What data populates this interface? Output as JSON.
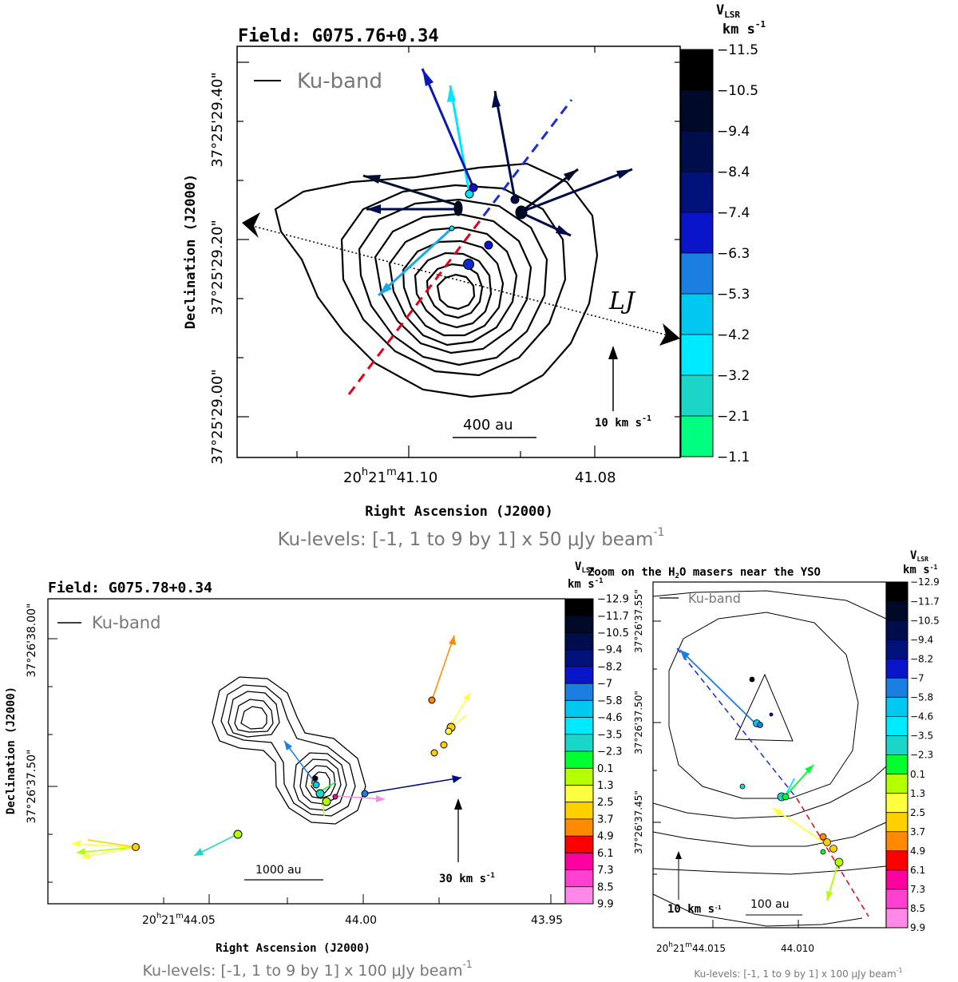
{
  "chart_data": [
    {
      "type": "scatter",
      "title": "Field: G075.76+0.34",
      "xlabel": "Right Ascension (J2000)",
      "ylabel": "Declination (J2000)",
      "x_ticks": [
        "20h21m41.10s",
        "41.08s"
      ],
      "x_tick_parts": {
        "h": "20",
        "m": "21",
        "s1": "41.10",
        "s2": "41.08"
      },
      "y_ticks": [
        "37°25'29.40\"",
        "37°25'29.20\"",
        "37°25'29.00\""
      ],
      "legend": "Ku-band",
      "scale_bar": "400  au",
      "velocity_ref": "10 km s-1",
      "velocity_ref_label": "10 km s",
      "lj_label": "LJ",
      "ku_levels_text": "Ku-levels: [-1, 1 to 9 by 1]  x 50 μJy beam",
      "ku_levels_exp": "-1",
      "colorbar_title": "V_LSR km s-1",
      "colorbar_title_main": "V",
      "colorbar_title_sub": "LSR",
      "colorbar_unit": "km s",
      "colorbar_exp": "-1",
      "colorbar_ticks": [
        "-11.5",
        "-10.5",
        "-9.4",
        "-8.4",
        "-7.4",
        "-6.3",
        "-5.3",
        "-4.2",
        "-3.2",
        "-2.1",
        "-1.1"
      ],
      "colorbar_colors": [
        "#000000",
        "#000a28",
        "#000d4d",
        "#00127a",
        "#0a14c8",
        "#1a7fe0",
        "#00c8f0",
        "#00eaff",
        "#1ad6c8",
        "#00ff80"
      ],
      "masers_vlsr_km_s": [
        -4.5,
        -9.0,
        -9.4,
        -9.8,
        -10.2,
        -4.0,
        -8.0,
        -6.5
      ]
    },
    {
      "type": "scatter",
      "title": "Field: G075.78+0.34",
      "xlabel": "Right Ascension (J2000)",
      "ylabel": "Declination (J2000)",
      "x_ticks": [
        "20h21m44.05s",
        "44.00s",
        "43.95s"
      ],
      "x_tick_parts": {
        "h": "20",
        "m": "21",
        "s1": "44.05",
        "s2": "44.00",
        "s3": "43.95"
      },
      "y_ticks": [
        "37°26'38.00\"",
        "37°26'37.50\""
      ],
      "legend": "Ku-band",
      "scale_bar": "1000  au",
      "velocity_ref": "30 km s-1",
      "velocity_ref_label": "30  km s",
      "ku_levels_text": "Ku-levels: [-1, 1 to 9 by 1]  x 100 μJy beam",
      "ku_levels_exp": "-1",
      "colorbar_title_main": "V",
      "colorbar_title_sub": "LSR",
      "colorbar_unit": "km s",
      "colorbar_exp": "-1",
      "colorbar_ticks": [
        "-12.9",
        "-11.7",
        "-10.5",
        "-9.4",
        "-8.2",
        "-7",
        "-5.8",
        "-4.6",
        "-3.5",
        "-2.3",
        "0.1",
        "1.3",
        "2.5",
        "3.7",
        "4.9",
        "6.1",
        "7.3",
        "8.5",
        "9.9"
      ],
      "colorbar_colors": [
        "#000000",
        "#000a28",
        "#000d4d",
        "#00127a",
        "#0a14c8",
        "#1a7fe0",
        "#00c8f0",
        "#00eaff",
        "#1ad6c8",
        "#00ff30",
        "#b4ff00",
        "#ffff40",
        "#ffd000",
        "#ff8a00",
        "#ff0000",
        "#ff00a0",
        "#ff40d0",
        "#ff88e8"
      ]
    },
    {
      "type": "scatter",
      "title": "Zoom on the H2O masers near the YSO",
      "title_parts": {
        "pre": "Zoom on the H",
        "sub": "2",
        "post": "O masers near the YSO"
      },
      "x_ticks": [
        "20h21m44.015s",
        "44.010s"
      ],
      "x_tick_parts": {
        "h": "20",
        "m": "21",
        "s1": "44.015",
        "s2": "44.010"
      },
      "y_ticks": [
        "37°26'37.55\"",
        "37°26'37.50\"",
        "37°26'37.45\""
      ],
      "legend": "Ku-band",
      "scale_bar": "100  au",
      "velocity_ref": "10 km s-1",
      "velocity_ref_label": "10  km s",
      "ku_levels_text": "Ku-levels: [-1, 1 to 9 by 1]  x 100 μJy beam",
      "ku_levels_exp": "-1",
      "colorbar_title_main": "V",
      "colorbar_title_sub": "LSR",
      "colorbar_unit": "km s",
      "colorbar_exp": "-1",
      "colorbar_ticks": [
        "-12.9",
        "-11.7",
        "-10.5",
        "-9.4",
        "-8.2",
        "-7",
        "-5.8",
        "-4.6",
        "-3.5",
        "-2.3",
        "0.1",
        "1.3",
        "2.5",
        "3.7",
        "4.9",
        "6.1",
        "7.3",
        "8.5",
        "9.9"
      ]
    }
  ]
}
